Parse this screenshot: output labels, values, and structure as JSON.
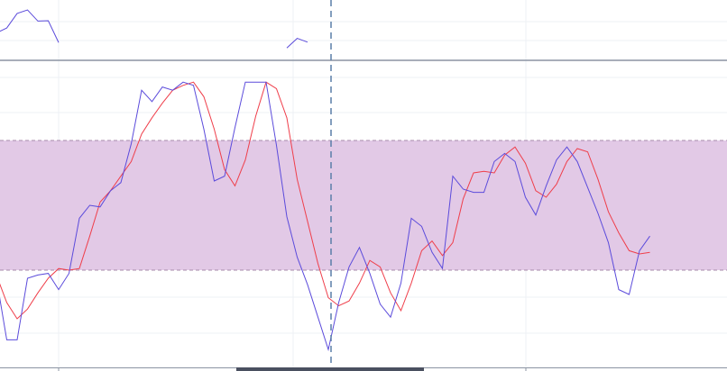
{
  "theme": {
    "background": "#ffffff",
    "grid": "#eef0f4",
    "pane_separator": "#8c94a3",
    "k_line": "#5b4bdb",
    "d_line": "#ef3e4a",
    "band_fill": "#e2c9e6",
    "band_border": "#a78aa9",
    "crosshair": "#5a7ea8",
    "scroll_handle": "#4a5060"
  },
  "chart_data": [
    {
      "type": "line",
      "pane": "price",
      "x": [
        0,
        1,
        2,
        3,
        4,
        5,
        6
      ],
      "series": [
        {
          "values": [
            69,
            82,
            120,
            129,
            100,
            101,
            44
          ]
        }
      ],
      "continuation": [
        {
          "x": [
            28,
            29,
            30
          ],
          "values": [
            30,
            55,
            45
          ]
        }
      ],
      "ylim": [
        0,
        155
      ]
    },
    {
      "type": "line",
      "pane": "oscillator",
      "x": [
        0,
        1,
        2,
        3,
        4,
        5,
        6,
        7,
        8,
        9,
        10,
        11,
        12,
        13,
        14,
        15,
        16,
        17,
        18,
        19,
        20,
        21,
        22,
        23,
        24,
        25,
        26,
        27,
        28,
        29,
        30,
        31,
        32,
        33,
        34,
        35,
        36,
        37,
        38,
        39,
        40,
        41,
        42,
        43,
        44,
        45,
        46,
        47,
        48,
        49,
        50,
        51,
        52,
        53,
        54,
        55,
        56,
        57,
        58,
        59,
        60,
        61,
        62,
        63
      ],
      "series": [
        {
          "values": [
            45,
            7,
            7,
            45,
            47,
            48,
            38,
            48,
            82,
            90,
            89,
            99,
            104,
            128,
            161,
            154,
            163,
            161,
            166,
            164,
            137,
            105,
            108,
            138,
            166,
            166,
            166,
            127,
            83,
            58,
            41,
            21,
            1,
            30,
            52,
            64,
            48,
            29,
            21,
            42,
            82,
            77,
            61,
            51,
            108,
            100,
            98,
            98,
            117,
            122,
            117,
            95,
            84,
            102,
            118,
            126,
            117,
            101,
            85,
            67,
            38,
            35,
            62,
            71
          ]
        },
        {
          "values": [
            47,
            30,
            20,
            26,
            36,
            45,
            51,
            50,
            51,
            71,
            92,
            99,
            108,
            117,
            134,
            144,
            153,
            161,
            164,
            166,
            157,
            137,
            112,
            102,
            118,
            145,
            166,
            162,
            144,
            106,
            80,
            54,
            33,
            28,
            31,
            42,
            56,
            52,
            36,
            25,
            42,
            62,
            68,
            59,
            67,
            94,
            110,
            111,
            110,
            121,
            126,
            116,
            99,
            95,
            103,
            117,
            125,
            123,
            106,
            86,
            73,
            62,
            60,
            61
          ]
        }
      ],
      "ylim": [
        0,
        170
      ],
      "band": [
        50,
        130
      ]
    }
  ]
}
